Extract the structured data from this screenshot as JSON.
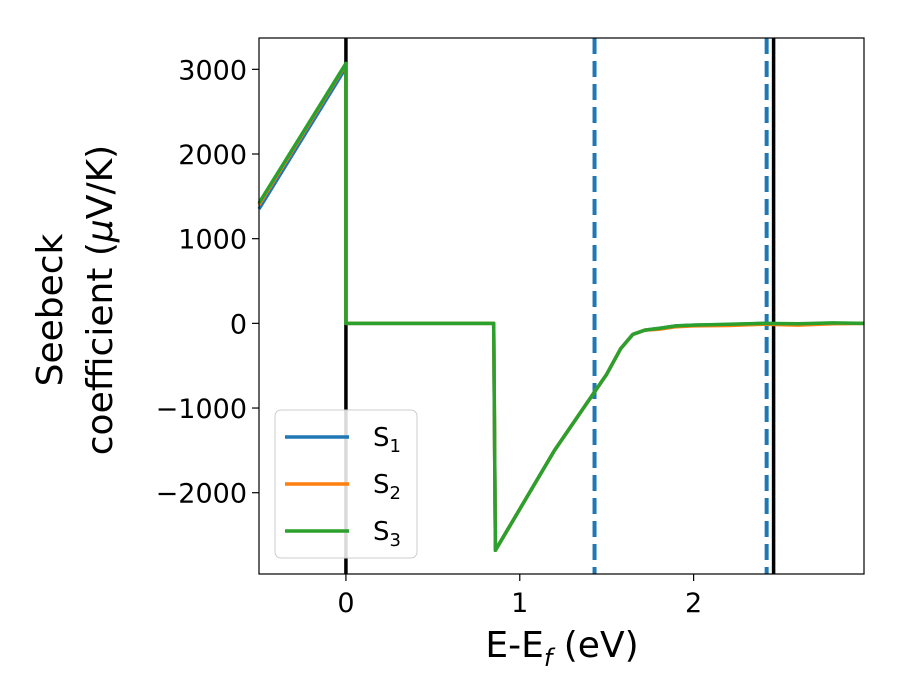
{
  "chart_data": {
    "type": "line",
    "title": "",
    "xlabel": {
      "main": "E-E",
      "sub": "f",
      "unit": " (eV)"
    },
    "ylabel": {
      "line1": "Seebeck",
      "line2_text": "coefficient  (",
      "line2_mu": "μ",
      "line2_unit": "V/K)"
    },
    "xlim": [
      -0.5,
      2.98
    ],
    "ylim": [
      -2960,
      3370
    ],
    "x_ticks": [
      0,
      1,
      2
    ],
    "x_tick_labels": [
      "0",
      "1",
      "2"
    ],
    "y_ticks": [
      3000,
      2000,
      1000,
      0,
      -1000,
      -2000
    ],
    "y_tick_labels": [
      "3000",
      "2000",
      "1000",
      "0",
      "−1000",
      "−2000"
    ],
    "grid": false,
    "legend_position": "lower-left",
    "series": [
      {
        "name": "S",
        "sub": "1",
        "color": "#1f77b4",
        "x": [
          -0.5,
          0.0,
          0.0,
          0.85,
          0.85,
          0.86,
          1.2,
          1.5,
          1.58,
          1.65,
          1.72,
          1.8,
          1.9,
          2.0,
          2.2,
          2.4,
          2.6,
          2.8,
          2.98
        ],
        "y": [
          1350,
          3020,
          0,
          0,
          0,
          -2680,
          -1500,
          -600,
          -300,
          -130,
          -80,
          -60,
          -30,
          -20,
          -15,
          0,
          -10,
          0,
          0
        ]
      },
      {
        "name": "S",
        "sub": "2",
        "color": "#ff7f0e",
        "x": [
          -0.5,
          0.0,
          0.0,
          0.85,
          0.85,
          0.86,
          1.2,
          1.5,
          1.58,
          1.65,
          1.72,
          1.8,
          1.9,
          2.0,
          2.2,
          2.4,
          2.6,
          2.8,
          2.98
        ],
        "y": [
          1400,
          3060,
          0,
          0,
          0,
          -2680,
          -1500,
          -600,
          -300,
          -130,
          -80,
          -70,
          -40,
          -30,
          -25,
          -10,
          -20,
          -5,
          0
        ]
      },
      {
        "name": "S",
        "sub": "3",
        "color": "#2ca02c",
        "x": [
          -0.5,
          0.0,
          0.0,
          0.85,
          0.85,
          0.86,
          1.2,
          1.5,
          1.58,
          1.65,
          1.72,
          1.8,
          1.9,
          2.0,
          2.2,
          2.4,
          2.6,
          2.8,
          2.98
        ],
        "y": [
          1420,
          3070,
          0,
          0,
          0,
          -2680,
          -1500,
          -600,
          -300,
          -130,
          -80,
          -60,
          -30,
          -20,
          -10,
          0,
          -5,
          5,
          0
        ]
      }
    ],
    "vlines": [
      {
        "x": 0.0,
        "color": "#000000",
        "style": "solid"
      },
      {
        "x": 2.46,
        "color": "#000000",
        "style": "solid"
      },
      {
        "x": 1.43,
        "color": "#1f77b4",
        "style": "dashed"
      },
      {
        "x": 2.42,
        "color": "#1f77b4",
        "style": "dashed"
      }
    ]
  }
}
